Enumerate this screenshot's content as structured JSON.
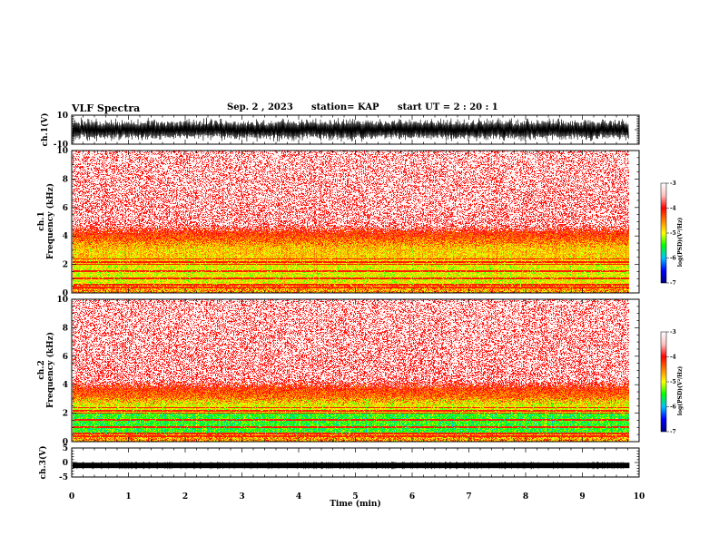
{
  "header": {
    "title": "VLF Spectra",
    "date": "Sep. 2 , 2023",
    "station": "station= KAP",
    "start_ut": "start  UT =  2 : 20 : 1"
  },
  "colors": {
    "spectrum_stops": [
      "#000080",
      "#0000ff",
      "#00c0ff",
      "#00ff00",
      "#ffff00",
      "#ff8000",
      "#ff0000",
      "#ffc0c0",
      "#ffffff"
    ]
  },
  "chart_data": [
    {
      "type": "line",
      "panel": "waveform-ch1",
      "ylabel": "ch.1(V)",
      "ylim": [
        -10,
        10
      ],
      "y_ticks": [
        "10",
        "-10"
      ],
      "description_values": "dense oscillation, approx between -8 and 8 V"
    },
    {
      "type": "heatmap",
      "panel": "spectrogram-ch1",
      "ylabel": "ch.1\nFrequency (kHz)",
      "ylabel_line1": "ch.1",
      "ylabel_line2": "Frequency (kHz)",
      "ylim": [
        0,
        10
      ],
      "y_ticks": [
        "0",
        "2",
        "4",
        "6",
        "8",
        "10"
      ],
      "band_top_khz": 3.3,
      "colorbar": {
        "label": "log(PSD)(V²/Hz)",
        "range": [
          -7,
          -3
        ],
        "ticks": [
          "-3",
          "-4",
          "-5",
          "-6",
          "-7"
        ]
      }
    },
    {
      "type": "heatmap",
      "panel": "spectrogram-ch2",
      "ylabel_line1": "ch.2",
      "ylabel_line2": "Frequency (kHz)",
      "ylim": [
        0,
        10
      ],
      "y_ticks": [
        "0",
        "2",
        "4",
        "6",
        "8",
        "10"
      ],
      "band_top_khz": 2.8,
      "colorbar": {
        "label": "log(PSD)(V²/Hz)",
        "range": [
          -7,
          -3
        ],
        "ticks": [
          "-3",
          "-4",
          "-5",
          "-6",
          "-7"
        ]
      }
    },
    {
      "type": "line",
      "panel": "waveform-ch3",
      "ylabel": "ch.3(V)",
      "ylim": [
        -5,
        5
      ],
      "y_ticks": [
        "5",
        "0",
        "-5"
      ],
      "description_values": "thick flat band near -1 V"
    }
  ],
  "xaxis": {
    "label": "Time  (min)",
    "xlim": [
      0,
      10
    ],
    "ticks": [
      "0",
      "1",
      "2",
      "3",
      "4",
      "5",
      "6",
      "7",
      "8",
      "9",
      "10"
    ],
    "data_end_min": 9.83
  }
}
